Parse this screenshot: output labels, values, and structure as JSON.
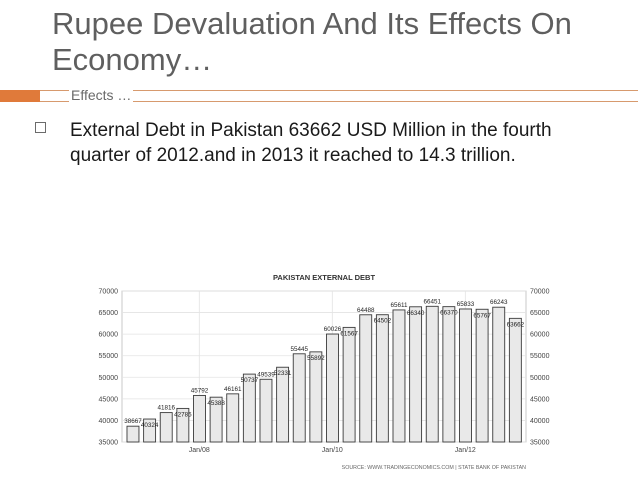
{
  "slide": {
    "title": "Rupee Devaluation And Its Effects On Economy…",
    "subtitle": "Effects …",
    "bullet": "External Debt in Pakistan 63662 USD Million in the fourth quarter of 2012.and in 2013 it reached to 14.3 trillion."
  },
  "chart_data": {
    "type": "bar",
    "title": "PAKISTAN EXTERNAL DEBT",
    "source": "SOURCE: WWW.TRADINGECONOMICS.COM | STATE BANK OF PAKISTAN",
    "values": [
      38667,
      40324,
      41816,
      42785,
      45792,
      45388,
      46161,
      50737,
      49539,
      52331,
      55445,
      55892,
      60026,
      61567,
      64488,
      64502,
      65611,
      66340,
      66451,
      66370,
      65833,
      65767,
      66243,
      63662
    ],
    "labels": [
      "38667",
      "40324",
      "41816",
      "42785",
      "45792",
      "45388",
      "46161",
      "50737",
      "49539",
      "52331",
      "55445",
      "55892",
      "60026",
      "61567",
      "64488",
      "64502",
      "65611",
      "66340",
      "66451",
      "66370",
      "65833",
      "65767",
      "66243",
      "63662"
    ],
    "xticks": [
      {
        "index": 4,
        "label": "Jan/08"
      },
      {
        "index": 12,
        "label": "Jan/10"
      },
      {
        "index": 20,
        "label": "Jan/12"
      }
    ],
    "ylim": [
      35000,
      70000
    ],
    "yticks": [
      "35000",
      "40000",
      "45000",
      "50000",
      "55000",
      "60000",
      "65000",
      "70000"
    ],
    "grid": true
  },
  "colors": {
    "bar_fill": "#e9e9e9",
    "bar_stroke": "#3a3a3a",
    "grid": "#e3e3e3",
    "accent": "#e07a3a"
  }
}
